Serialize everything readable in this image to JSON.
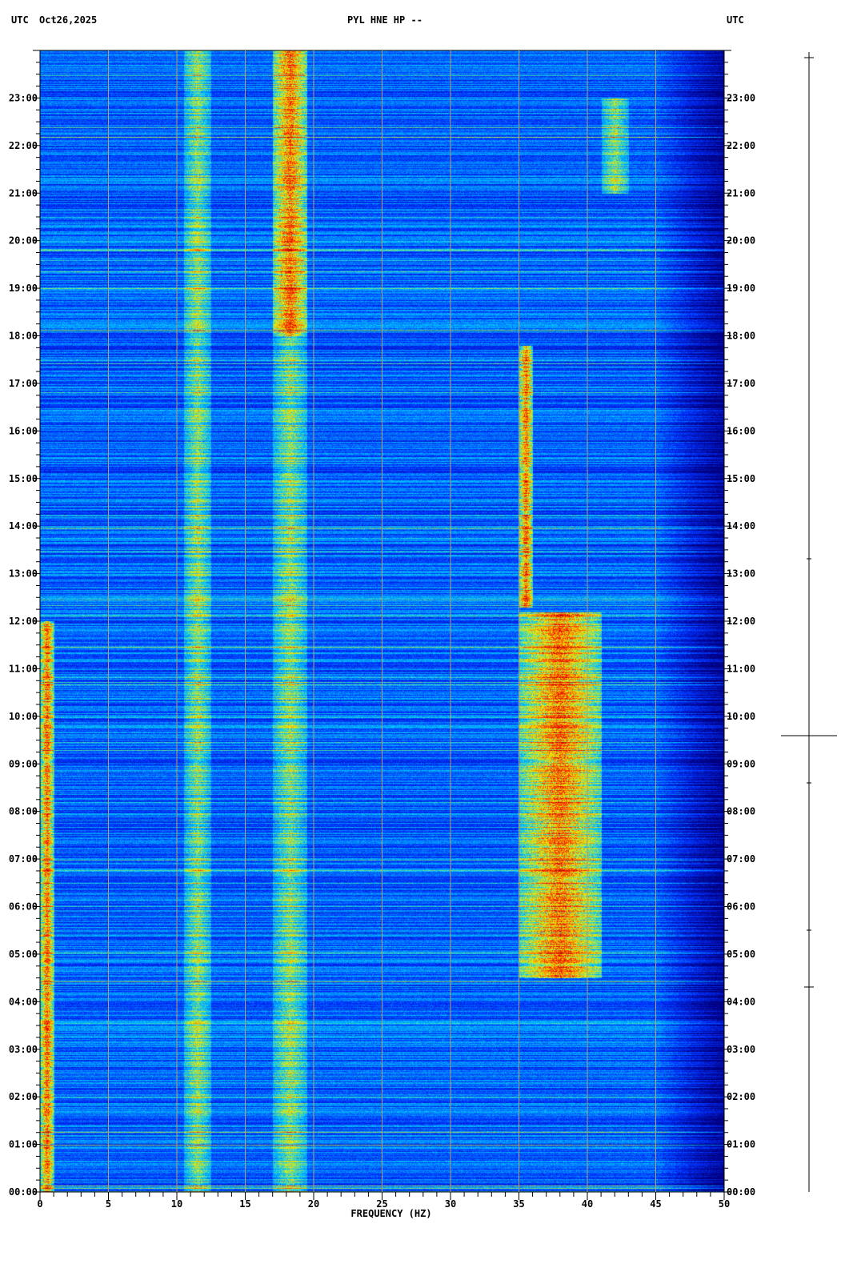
{
  "header": {
    "left_tz": "UTC",
    "date": "Oct26,2025",
    "title": "PYL HNE HP --",
    "right_tz": "UTC"
  },
  "chart_data": {
    "type": "heatmap",
    "title": "PYL HNE HP --",
    "xlabel": "FREQUENCY (HZ)",
    "ylabel": "",
    "xlim": [
      0,
      50
    ],
    "ylim_hours": [
      0,
      24
    ],
    "x_ticks": [
      "0",
      "5",
      "10",
      "15",
      "20",
      "25",
      "30",
      "35",
      "40",
      "45",
      "50"
    ],
    "y_ticks": [
      "00:00",
      "01:00",
      "02:00",
      "03:00",
      "04:00",
      "05:00",
      "06:00",
      "07:00",
      "08:00",
      "09:00",
      "10:00",
      "11:00",
      "12:00",
      "13:00",
      "14:00",
      "15:00",
      "16:00",
      "17:00",
      "18:00",
      "19:00",
      "20:00",
      "21:00",
      "22:00",
      "23:00"
    ],
    "grid": true,
    "colormap": [
      "#000080",
      "#0030ff",
      "#00c8ff",
      "#f0f000",
      "#ff2000",
      "#a00000"
    ],
    "features": [
      {
        "freq_hz": [
          17,
          19.5
        ],
        "hours": [
          18,
          24
        ],
        "level": "high"
      },
      {
        "freq_hz": [
          17,
          19.5
        ],
        "hours": [
          0,
          18
        ],
        "level": "moderate"
      },
      {
        "freq_hz": [
          10.5,
          12.5
        ],
        "hours": [
          0,
          24
        ],
        "level": "moderate"
      },
      {
        "freq_hz": [
          35,
          41
        ],
        "hours": [
          4.5,
          12.2
        ],
        "level": "high"
      },
      {
        "freq_hz": [
          35,
          36
        ],
        "hours": [
          12.3,
          17.8
        ],
        "level": "high"
      },
      {
        "freq_hz": [
          0,
          1
        ],
        "hours": [
          0,
          12
        ],
        "level": "high"
      },
      {
        "freq_hz": [
          41,
          43
        ],
        "hours": [
          21,
          23
        ],
        "level": "moderate"
      }
    ]
  }
}
